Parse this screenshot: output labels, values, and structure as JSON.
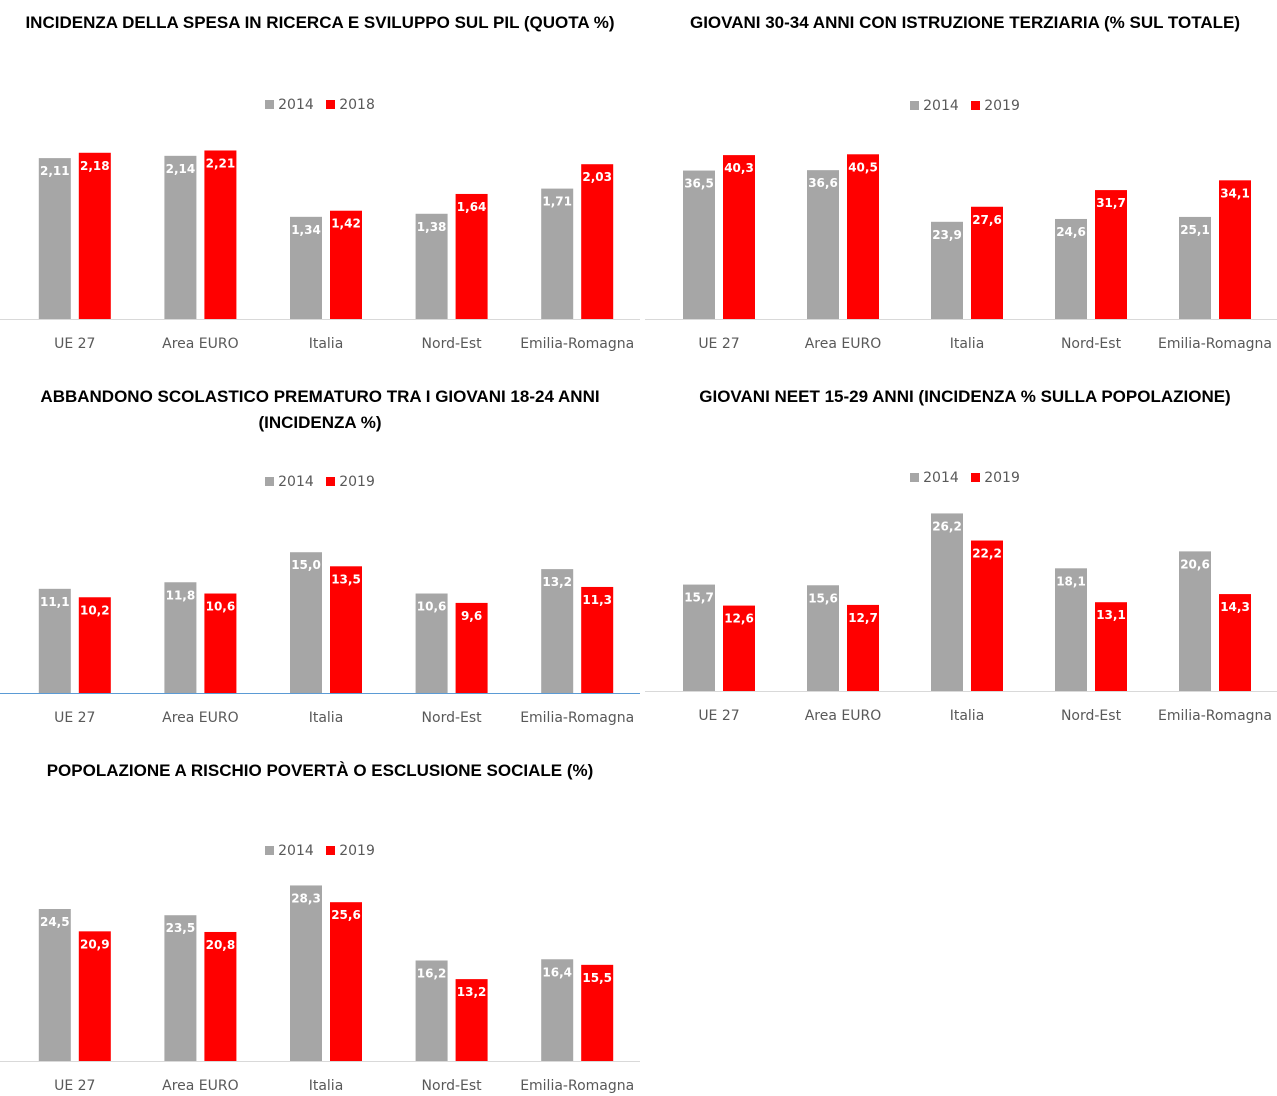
{
  "colors": {
    "old": "#a6a6a6",
    "new": "#ff0000",
    "axis_gray": "#d9d9d9",
    "axis_blue": "#5b9bd5",
    "text": "#595959"
  },
  "chart_data": [
    {
      "type": "bar",
      "title": "INCIDENZA DELLA SPESA IN RICERCA E SVILUPPO SUL PIL (QUOTA %)",
      "categories": [
        "UE 27",
        "Area EURO",
        "Italia",
        "Nord-Est",
        "Emilia-Romagna"
      ],
      "series": [
        {
          "name": "2014",
          "values": [
            2.11,
            2.14,
            1.34,
            1.38,
            1.71
          ],
          "labels": [
            "2,11",
            "2,14",
            "1,34",
            "1,38",
            "1,71"
          ]
        },
        {
          "name": "2018",
          "values": [
            2.18,
            2.21,
            1.42,
            1.64,
            2.03
          ],
          "labels": [
            "2,18",
            "2,21",
            "1,42",
            "1,64",
            "2,03"
          ]
        }
      ],
      "ylim": [
        0,
        2.4
      ],
      "grid": false,
      "legend": "top-center"
    },
    {
      "type": "bar",
      "title": "GIOVANI 30-34 ANNI CON ISTRUZIONE TERZIARIA (% SUL TOTALE)",
      "categories": [
        "UE 27",
        "Area EURO",
        "Italia",
        "Nord-Est",
        "Emilia-Romagna"
      ],
      "series": [
        {
          "name": "2014",
          "values": [
            36.5,
            36.6,
            23.9,
            24.6,
            25.1
          ],
          "labels": [
            "36,5",
            "36,6",
            "23,9",
            "24,6",
            "25,1"
          ]
        },
        {
          "name": "2019",
          "values": [
            40.3,
            40.5,
            27.6,
            31.7,
            34.1
          ],
          "labels": [
            "40,3",
            "40,5",
            "27,6",
            "31,7",
            "34,1"
          ]
        }
      ],
      "ylim": [
        0,
        45
      ],
      "grid": false,
      "legend": "top-center"
    },
    {
      "type": "bar",
      "title": "ABBANDONO SCOLASTICO PREMATURO TRA I GIOVANI 18-24 ANNI (INCIDENZA %)",
      "categories": [
        "UE 27",
        "Area EURO",
        "Italia",
        "Nord-Est",
        "Emilia-Romagna"
      ],
      "series": [
        {
          "name": "2014",
          "values": [
            11.1,
            11.8,
            15.0,
            10.6,
            13.2
          ],
          "labels": [
            "11,1",
            "11,8",
            "15,0",
            "10,6",
            "13,2"
          ]
        },
        {
          "name": "2019",
          "values": [
            10.2,
            10.6,
            13.5,
            9.6,
            11.3
          ],
          "labels": [
            "10,2",
            "10,6",
            "13,5",
            "9,6",
            "11,3"
          ]
        }
      ],
      "ylim": [
        0,
        19.5
      ],
      "grid": false,
      "legend": "top-center"
    },
    {
      "type": "bar",
      "title": "GIOVANI NEET 15-29 ANNI (INCIDENZA % SULLA POPOLAZIONE)",
      "categories": [
        "UE 27",
        "Area EURO",
        "Italia",
        "Nord-Est",
        "Emilia-Romagna"
      ],
      "series": [
        {
          "name": "2014",
          "values": [
            15.7,
            15.6,
            26.2,
            18.1,
            20.6
          ],
          "labels": [
            "15,7",
            "15,6",
            "26,2",
            "18,1",
            "20,6"
          ]
        },
        {
          "name": "2019",
          "values": [
            12.6,
            12.7,
            22.2,
            13.1,
            14.3
          ],
          "labels": [
            "12,6",
            "12,7",
            "22,2",
            "13,1",
            "14,3"
          ]
        }
      ],
      "ylim": [
        0,
        27
      ],
      "grid": false,
      "legend": "top-center"
    },
    {
      "type": "bar",
      "title": "POPOLAZIONE A RISCHIO POVERTÀ O ESCLUSIONE SOCIALE (%)",
      "categories": [
        "UE 27",
        "Area EURO",
        "Italia",
        "Nord-Est",
        "Emilia-Romagna"
      ],
      "series": [
        {
          "name": "2014",
          "values": [
            24.5,
            23.5,
            28.3,
            16.2,
            16.4
          ],
          "labels": [
            "24,5",
            "23,5",
            "28,3",
            "16,2",
            "16,4"
          ]
        },
        {
          "name": "2019",
          "values": [
            20.9,
            20.8,
            25.6,
            13.2,
            15.5
          ],
          "labels": [
            "20,9",
            "20,8",
            "25,6",
            "13,2",
            "15,5"
          ]
        }
      ],
      "ylim": [
        0,
        29.5
      ],
      "grid": false,
      "legend": "top-center"
    }
  ]
}
